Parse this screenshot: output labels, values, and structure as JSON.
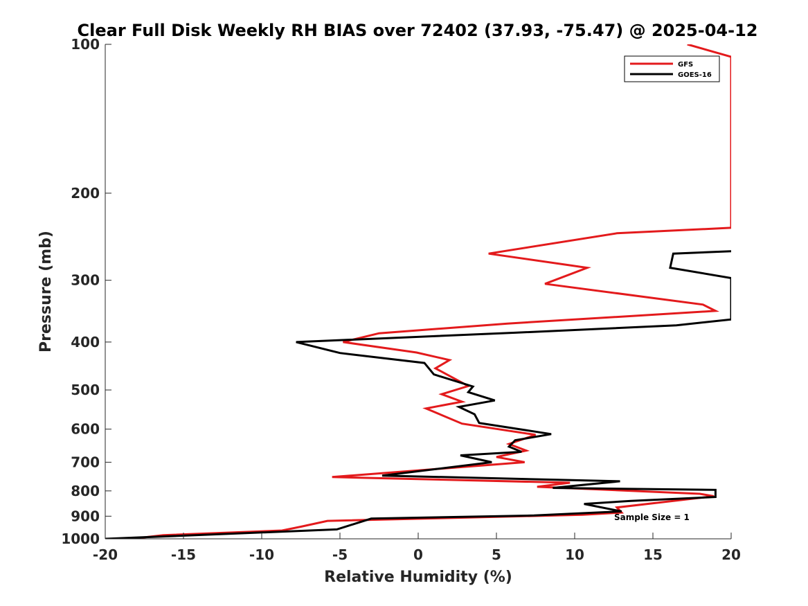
{
  "chart_data": {
    "type": "line",
    "title": "Clear Full Disk Weekly RH BIAS over 72402 (37.93, -75.47) @ 2025-04-12",
    "xlabel": "Relative Humidity (%)",
    "ylabel": "Pressure (mb)",
    "xlim": [
      -20,
      20
    ],
    "ylim": [
      1000,
      100
    ],
    "yscale": "log-reversed",
    "xticks": [
      "-20",
      "-15",
      "-10",
      "-5",
      "0",
      "5",
      "10",
      "15",
      "20"
    ],
    "yticks": [
      "100",
      "200",
      "300",
      "400",
      "500",
      "600",
      "700",
      "800",
      "900",
      "1000"
    ],
    "grid": false,
    "legend_position": "top-right",
    "annotation": "Sample Size = 1",
    "series": [
      {
        "name": "GFS",
        "color": "#e31a1c",
        "points": [
          [
            17.2,
            100
          ],
          [
            20.0,
            106
          ],
          [
            20.0,
            235
          ],
          [
            12.7,
            241
          ],
          [
            4.5,
            265
          ],
          [
            10.8,
            283
          ],
          [
            8.1,
            305
          ],
          [
            18.2,
            336
          ],
          [
            19.0,
            346
          ],
          [
            5.7,
            367
          ],
          [
            -2.5,
            384
          ],
          [
            -4.8,
            400
          ],
          [
            -0.1,
            420
          ],
          [
            2.0,
            435
          ],
          [
            1.1,
            452
          ],
          [
            3.2,
            491
          ],
          [
            1.5,
            510
          ],
          [
            2.8,
            528
          ],
          [
            0.5,
            545
          ],
          [
            2.8,
            585
          ],
          [
            7.5,
            616
          ],
          [
            5.8,
            643
          ],
          [
            6.9,
            663
          ],
          [
            5.0,
            683
          ],
          [
            6.8,
            700
          ],
          [
            -5.5,
            750
          ],
          [
            9.7,
            770
          ],
          [
            7.6,
            785
          ],
          [
            18.0,
            811
          ],
          [
            18.9,
            820
          ],
          [
            12.7,
            864
          ],
          [
            13.0,
            885
          ],
          [
            10.5,
            894
          ],
          [
            -5.8,
            920
          ],
          [
            -7.5,
            945
          ],
          [
            -8.7,
            962
          ],
          [
            -16.3,
            983
          ],
          [
            -18.3,
            1000
          ]
        ]
      },
      {
        "name": "GOES-16",
        "color": "#000000",
        "points": [
          [
            20.0,
            262
          ],
          [
            16.3,
            265
          ],
          [
            16.1,
            283
          ],
          [
            20.0,
            297
          ],
          [
            20.0,
            360
          ],
          [
            16.5,
            370
          ],
          [
            6.2,
            383
          ],
          [
            -7.8,
            400
          ],
          [
            -5.0,
            421
          ],
          [
            0.4,
            441
          ],
          [
            1.0,
            465
          ],
          [
            3.5,
            492
          ],
          [
            3.2,
            505
          ],
          [
            4.9,
            525
          ],
          [
            2.6,
            541
          ],
          [
            3.6,
            560
          ],
          [
            3.9,
            583
          ],
          [
            8.5,
            614
          ],
          [
            6.2,
            632
          ],
          [
            5.8,
            651
          ],
          [
            6.6,
            667
          ],
          [
            2.7,
            678
          ],
          [
            4.7,
            700
          ],
          [
            -2.3,
            745
          ],
          [
            12.9,
            765
          ],
          [
            8.6,
            789
          ],
          [
            19.0,
            796
          ],
          [
            19.0,
            823
          ],
          [
            13.6,
            838
          ],
          [
            10.6,
            850
          ],
          [
            13.0,
            880
          ],
          [
            7.4,
            897
          ],
          [
            -3.0,
            910
          ],
          [
            -5.2,
            957
          ],
          [
            -20.0,
            1000
          ]
        ]
      }
    ]
  }
}
